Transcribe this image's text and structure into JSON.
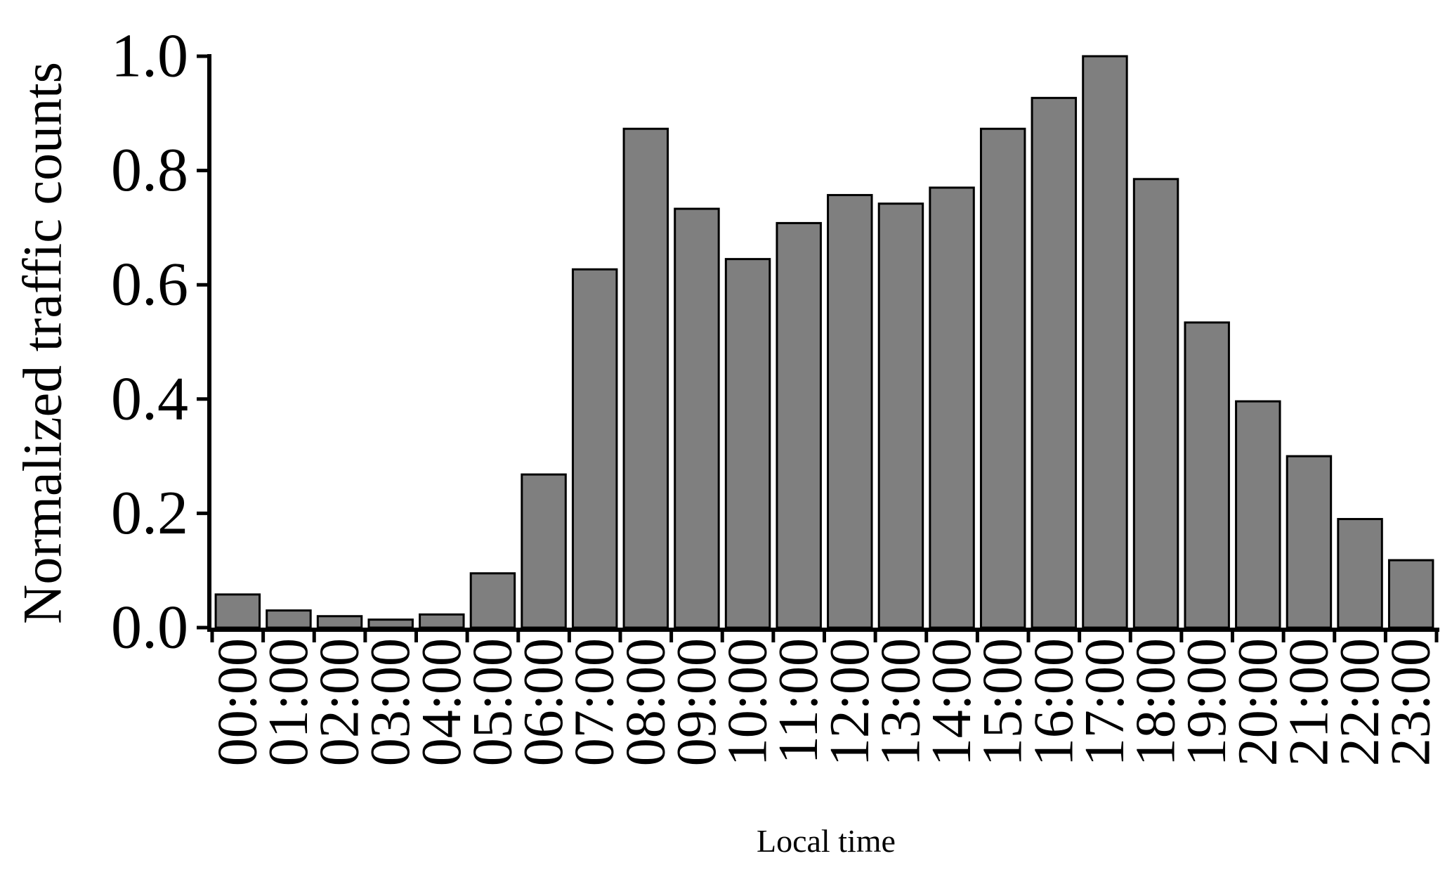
{
  "chart_data": {
    "type": "bar",
    "title": "",
    "xlabel": "Local time",
    "ylabel": "Normalized traffic counts",
    "categories": [
      "00:00",
      "01:00",
      "02:00",
      "03:00",
      "04:00",
      "05:00",
      "06:00",
      "07:00",
      "08:00",
      "09:00",
      "10:00",
      "11:00",
      "12:00",
      "13:00",
      "14:00",
      "15:00",
      "16:00",
      "17:00",
      "18:00",
      "19:00",
      "20:00",
      "21:00",
      "22:00",
      "23:00"
    ],
    "values": [
      0.058,
      0.03,
      0.02,
      0.014,
      0.023,
      0.095,
      0.268,
      0.627,
      0.873,
      0.733,
      0.645,
      0.708,
      0.757,
      0.742,
      0.77,
      0.873,
      0.927,
      1.0,
      0.785,
      0.534,
      0.396,
      0.3,
      0.19,
      0.118
    ],
    "ylim": [
      0,
      1.0
    ],
    "yticks": [
      "0.0",
      "0.2",
      "0.4",
      "0.6",
      "0.8",
      "1.0"
    ],
    "grid": false,
    "legend": "none",
    "bar_color": "#7f7f7f",
    "edge_color": "#000000"
  }
}
